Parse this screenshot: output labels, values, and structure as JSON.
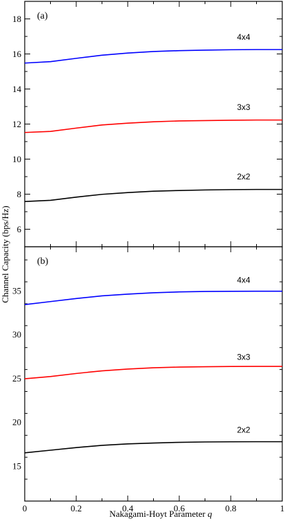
{
  "chart_data": {
    "type": "line",
    "xlabel": "Nakagami-Hoyt Parameter",
    "xlabel_symbol": "q",
    "ylabel": "Channel Capacity (bps/Hz)",
    "xlim": [
      0,
      1
    ],
    "x_ticks": [
      "0",
      "0.2",
      "0.4",
      "0.6",
      "0.8",
      "1"
    ],
    "grid": false,
    "panels": [
      {
        "tag": "(a)",
        "ylim": [
          5,
          19
        ],
        "y_ticks": [
          6,
          8,
          10,
          12,
          14,
          16,
          18
        ],
        "x": [
          0,
          0.1,
          0.2,
          0.3,
          0.4,
          0.5,
          0.6,
          0.7,
          0.8,
          0.9,
          1.0
        ],
        "series": [
          {
            "name": "4x4",
            "color": "#0000ff",
            "label_x": 0.85,
            "label_y": 16.8,
            "values": [
              15.48,
              15.56,
              15.75,
              15.93,
              16.05,
              16.14,
              16.19,
              16.22,
              16.24,
              16.25,
              16.25
            ]
          },
          {
            "name": "3x3",
            "color": "#ff0000",
            "label_x": 0.85,
            "label_y": 12.8,
            "values": [
              11.52,
              11.58,
              11.77,
              11.95,
              12.05,
              12.13,
              12.18,
              12.2,
              12.22,
              12.23,
              12.23
            ]
          },
          {
            "name": "2x2",
            "color": "#000000",
            "label_x": 0.85,
            "label_y": 8.85,
            "values": [
              7.58,
              7.65,
              7.83,
              7.99,
              8.09,
              8.17,
              8.21,
              8.24,
              8.26,
              8.27,
              8.27
            ]
          }
        ]
      },
      {
        "tag": "(b)",
        "ylim": [
          11,
          40
        ],
        "y_ticks": [
          15,
          20,
          25,
          30,
          35
        ],
        "x": [
          0,
          0.1,
          0.2,
          0.3,
          0.4,
          0.5,
          0.6,
          0.7,
          0.8,
          0.9,
          1.0
        ],
        "series": [
          {
            "name": "4x4",
            "color": "#0000ff",
            "label_x": 0.85,
            "label_y": 35.9,
            "values": [
              33.4,
              33.75,
              34.1,
              34.4,
              34.6,
              34.75,
              34.85,
              34.9,
              34.92,
              34.93,
              34.93
            ]
          },
          {
            "name": "3x3",
            "color": "#ff0000",
            "label_x": 0.85,
            "label_y": 27.1,
            "values": [
              24.95,
              25.2,
              25.55,
              25.85,
              26.05,
              26.2,
              26.28,
              26.32,
              26.35,
              26.36,
              26.36
            ]
          },
          {
            "name": "2x2",
            "color": "#000000",
            "label_x": 0.85,
            "label_y": 18.8,
            "values": [
              16.5,
              16.8,
              17.1,
              17.35,
              17.52,
              17.62,
              17.7,
              17.74,
              17.76,
              17.77,
              17.77
            ]
          }
        ]
      }
    ]
  }
}
